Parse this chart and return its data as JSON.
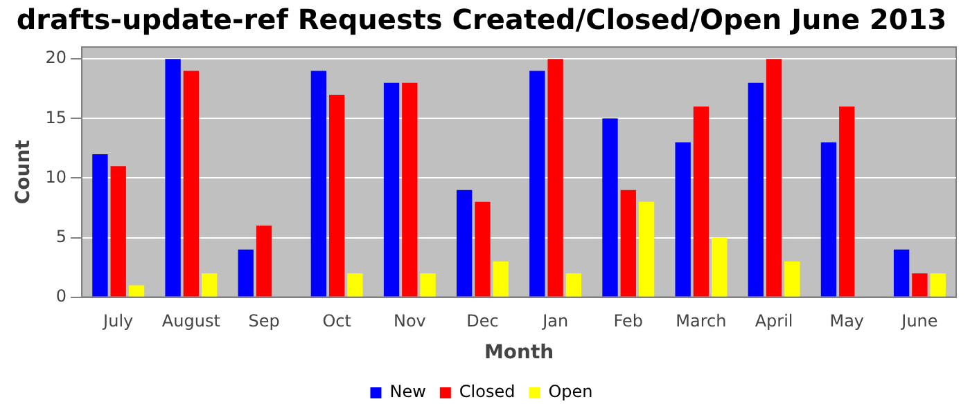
{
  "chart_data": {
    "type": "bar",
    "title": "drafts-update-ref Requests Created/Closed/Open June 2013",
    "xlabel": "Month",
    "ylabel": "Count",
    "categories": [
      "July",
      "August",
      "Sep",
      "Oct",
      "Nov",
      "Dec",
      "Jan",
      "Feb",
      "March",
      "April",
      "May",
      "June"
    ],
    "series": [
      {
        "name": "New",
        "color": "#0000ff",
        "values": [
          12,
          20,
          4,
          19,
          18,
          9,
          19,
          15,
          13,
          18,
          13,
          4
        ]
      },
      {
        "name": "Closed",
        "color": "#ff0000",
        "values": [
          11,
          19,
          6,
          17,
          18,
          8,
          20,
          9,
          16,
          20,
          16,
          2
        ]
      },
      {
        "name": "Open",
        "color": "#ffff00",
        "values": [
          1,
          2,
          0,
          2,
          2,
          3,
          2,
          8,
          5,
          3,
          0,
          2
        ]
      }
    ],
    "ylim": [
      0,
      21
    ],
    "yticks": [
      0,
      5,
      10,
      15,
      20
    ],
    "grid": "y",
    "legend": "bottom"
  }
}
